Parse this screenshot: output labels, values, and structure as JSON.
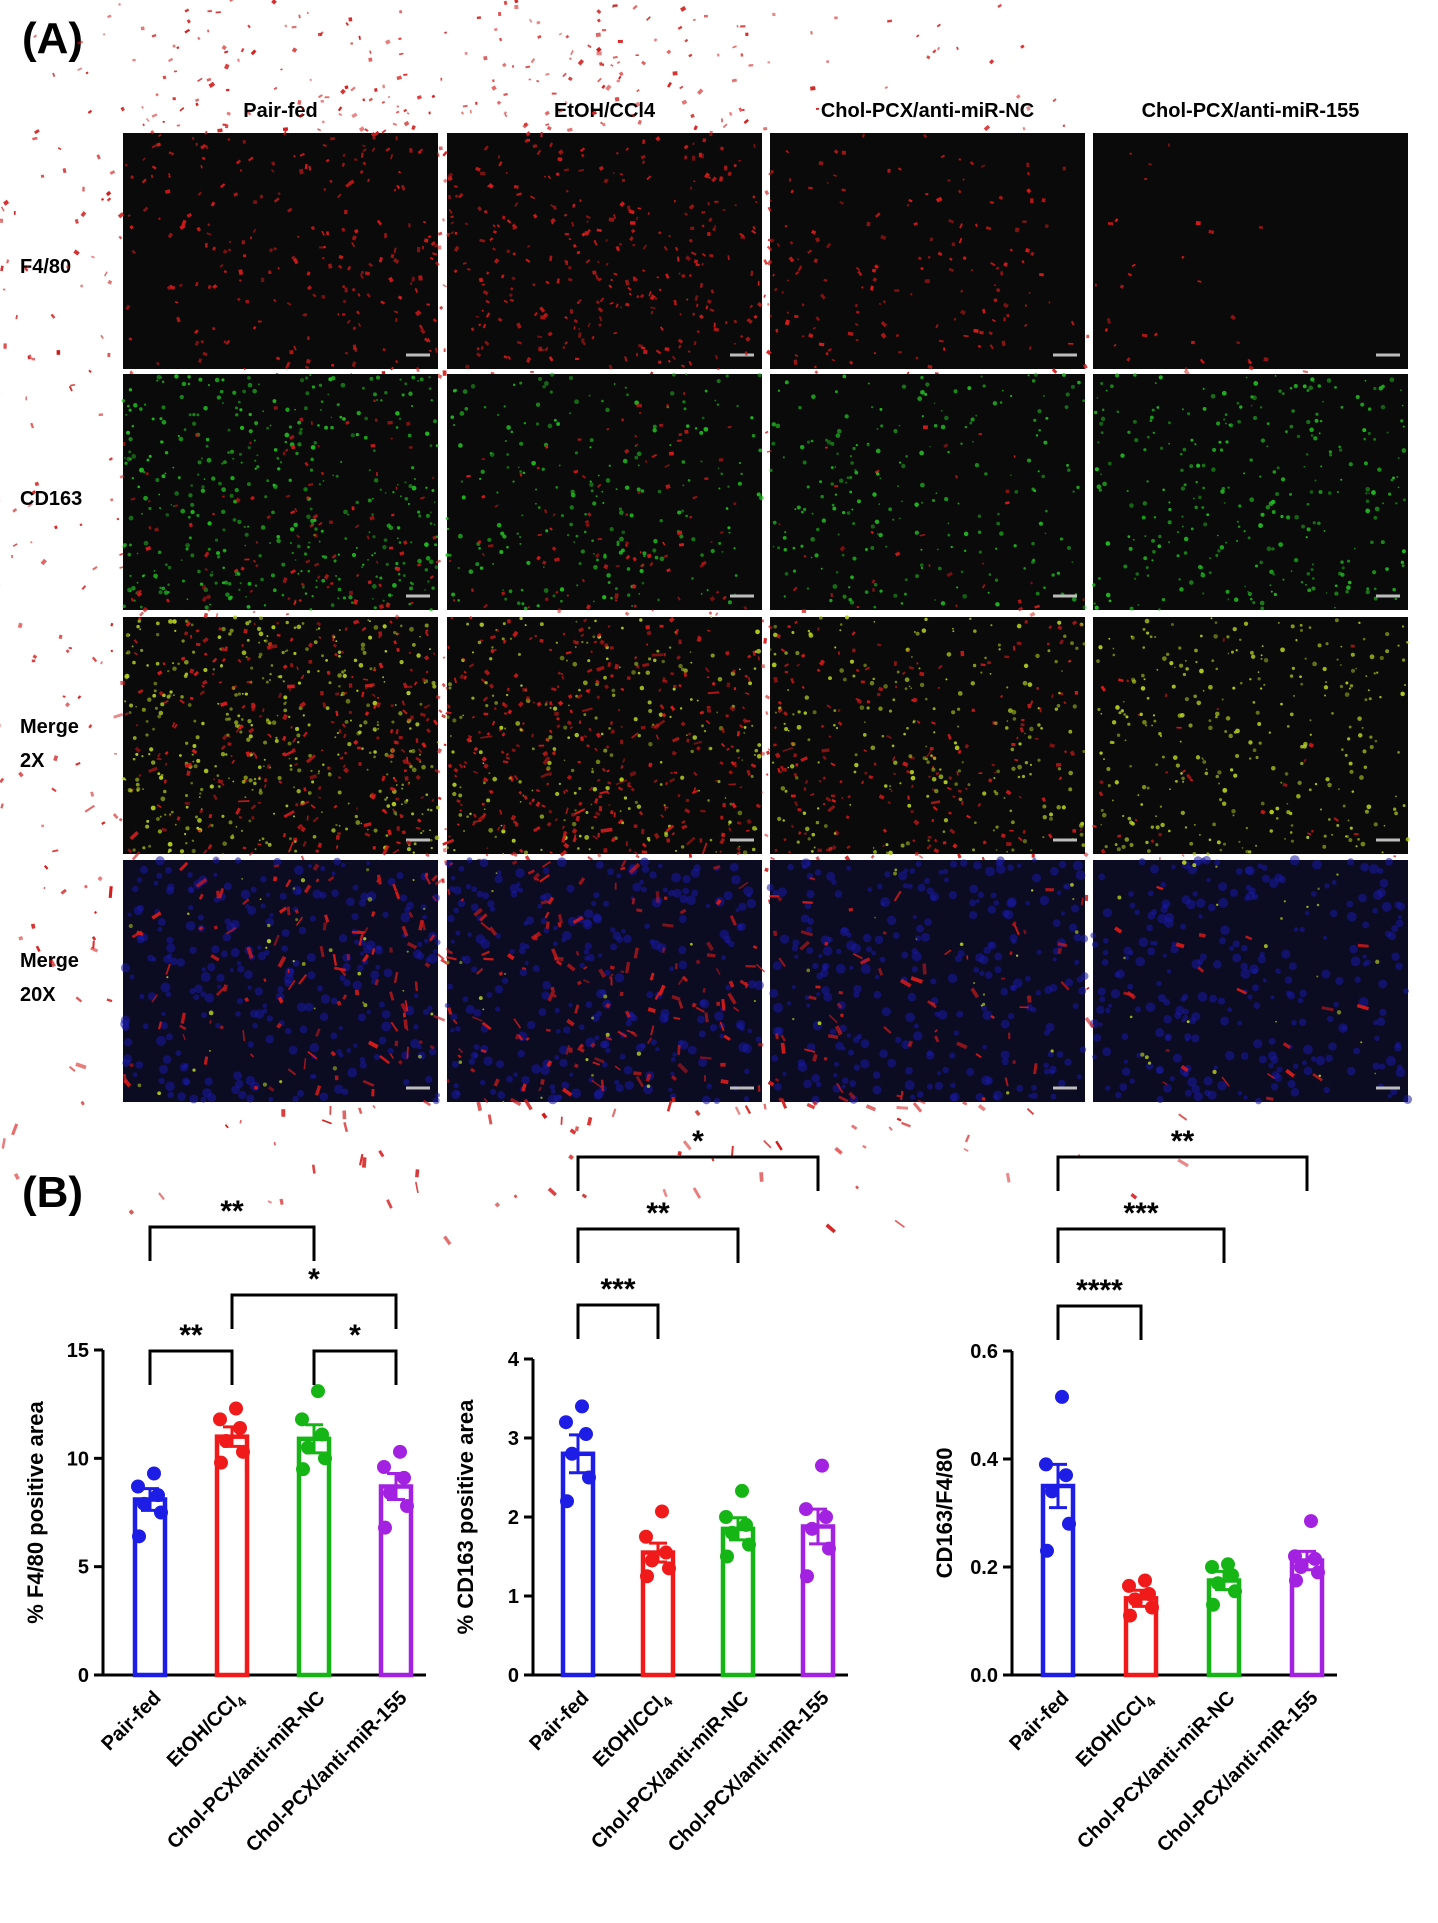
{
  "panel_a": {
    "label": "(A)",
    "columns": [
      "Pair-fed",
      "EtOH/CCl4",
      "Chol-PCX/anti-miR-NC",
      "Chol-PCX/anti-miR-155"
    ],
    "rows": [
      {
        "label": "F4/80",
        "channel": "red"
      },
      {
        "label": "CD163",
        "channel": "green"
      },
      {
        "label": "Merge\n2X",
        "channel": "merge"
      },
      {
        "label": "Merge\n20X",
        "channel": "merge-hi"
      }
    ],
    "colors": {
      "f480": "#d41a1a",
      "cd163": "#22c022",
      "dapi": "#1a1aa6",
      "background": "#0a0a0a",
      "scale_bar": "#bdbdbd"
    }
  },
  "panel_b": {
    "label": "(B)"
  },
  "chart_data": [
    {
      "type": "bar",
      "ylabel": "% F4/80 positive area",
      "ylim": [
        0,
        15
      ],
      "yticks": [
        0,
        5,
        10,
        15
      ],
      "categories": [
        "Pair-fed",
        "EtOH/CCl4",
        "Chol-PCX/anti-miR-NC",
        "Chol-PCX/anti-miR-155"
      ],
      "colors": [
        "#1d1de6",
        "#f01a1a",
        "#16b516",
        "#a321e0"
      ],
      "values": [
        8.1,
        11.0,
        10.9,
        8.7
      ],
      "sem": [
        0.5,
        0.45,
        0.65,
        0.6
      ],
      "points": [
        [
          6.4,
          7.5,
          7.9,
          8.3,
          8.7,
          9.3
        ],
        [
          9.8,
          10.3,
          10.8,
          11.4,
          11.8,
          12.3
        ],
        [
          9.5,
          10.0,
          10.5,
          11.1,
          11.8,
          13.1
        ],
        [
          6.8,
          7.8,
          8.4,
          9.1,
          9.6,
          10.3
        ]
      ],
      "significance": [
        {
          "from": 0,
          "to": 1,
          "label": "**",
          "level": 0
        },
        {
          "from": 2,
          "to": 3,
          "label": "*",
          "level": 0
        },
        {
          "from": 1,
          "to": 3,
          "label": "*",
          "level": 1
        },
        {
          "from": 0,
          "to": 2,
          "label": "**",
          "level": 2
        }
      ]
    },
    {
      "type": "bar",
      "ylabel": "% CD163 positive area",
      "ylim": [
        0,
        4
      ],
      "yticks": [
        0,
        1,
        2,
        3,
        4
      ],
      "categories": [
        "Pair-fed",
        "EtOH/CCl4",
        "Chol-PCX/anti-miR-NC",
        "Chol-PCX/anti-miR-155"
      ],
      "colors": [
        "#1d1de6",
        "#f01a1a",
        "#16b516",
        "#a321e0"
      ],
      "values": [
        2.8,
        1.55,
        1.85,
        1.88
      ],
      "sem": [
        0.24,
        0.12,
        0.14,
        0.22
      ],
      "points": [
        [
          2.2,
          2.5,
          2.8,
          3.05,
          3.2,
          3.4
        ],
        [
          1.25,
          1.35,
          1.45,
          1.55,
          1.75,
          2.07
        ],
        [
          1.5,
          1.65,
          1.8,
          1.9,
          2.0,
          2.33
        ],
        [
          1.25,
          1.6,
          1.85,
          2.0,
          2.1,
          2.65
        ]
      ],
      "significance": [
        {
          "from": 0,
          "to": 1,
          "label": "***",
          "level": 0
        },
        {
          "from": 0,
          "to": 2,
          "label": "**",
          "level": 1
        },
        {
          "from": 0,
          "to": 3,
          "label": "*",
          "level": 2
        }
      ]
    },
    {
      "type": "bar",
      "ylabel": "CD163/F4/80",
      "ylim": [
        0,
        0.6
      ],
      "yticks": [
        0.0,
        0.2,
        0.4,
        0.6
      ],
      "categories": [
        "Pair-fed",
        "EtOH/CCl4",
        "Chol-PCX/anti-miR-NC",
        "Chol-PCX/anti-miR-155"
      ],
      "colors": [
        "#1d1de6",
        "#f01a1a",
        "#16b516",
        "#a321e0"
      ],
      "values": [
        0.35,
        0.142,
        0.175,
        0.212
      ],
      "sem": [
        0.04,
        0.015,
        0.017,
        0.017
      ],
      "points": [
        [
          0.23,
          0.28,
          0.34,
          0.37,
          0.39,
          0.515
        ],
        [
          0.11,
          0.125,
          0.14,
          0.15,
          0.165,
          0.175
        ],
        [
          0.13,
          0.155,
          0.17,
          0.185,
          0.2,
          0.205
        ],
        [
          0.175,
          0.19,
          0.2,
          0.215,
          0.22,
          0.285
        ]
      ],
      "significance": [
        {
          "from": 0,
          "to": 1,
          "label": "****",
          "level": 0
        },
        {
          "from": 0,
          "to": 2,
          "label": "***",
          "level": 1
        },
        {
          "from": 0,
          "to": 3,
          "label": "**",
          "level": 2
        }
      ]
    }
  ]
}
